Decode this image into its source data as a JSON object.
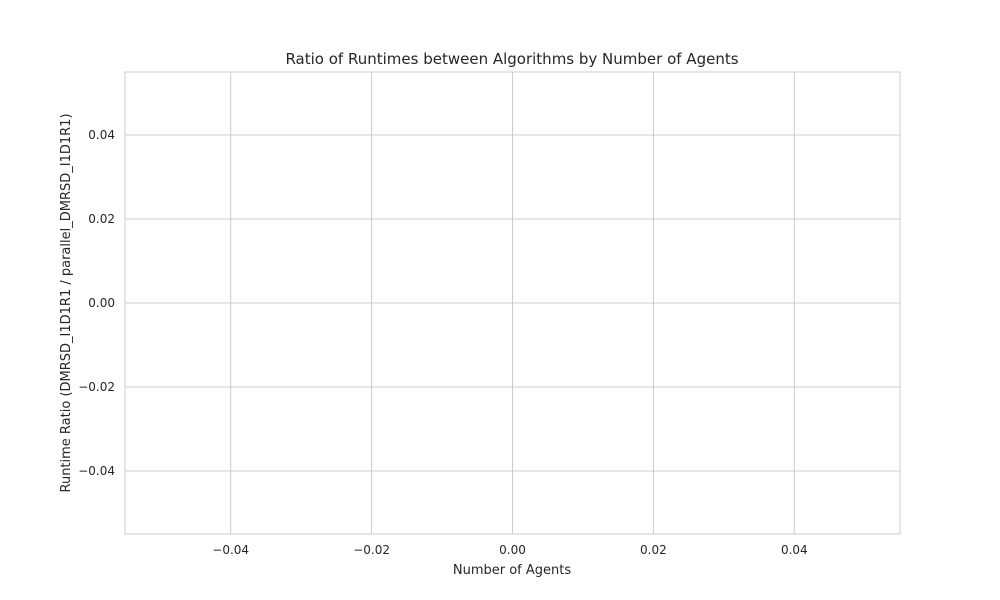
{
  "chart_data": {
    "type": "line",
    "title": "Ratio of Runtimes between Algorithms by Number of Agents",
    "xlabel": "Number of Agents",
    "ylabel": "Runtime Ratio (DMRSD_I1D1R1 / parallel_DMRSD_I1D1R1)",
    "xlim": [
      -0.055,
      0.055
    ],
    "ylim": [
      -0.055,
      0.055
    ],
    "x_ticks": [
      -0.04,
      -0.02,
      0.0,
      0.02,
      0.04
    ],
    "y_ticks": [
      -0.04,
      -0.02,
      0.0,
      0.02,
      0.04
    ],
    "x_tick_labels": [
      "−0.04",
      "−0.02",
      "0.00",
      "0.02",
      "0.04"
    ],
    "y_tick_labels": [
      "−0.04",
      "−0.02",
      "0.00",
      "0.02",
      "0.04"
    ],
    "grid": true,
    "series": [],
    "colors": {
      "grid": "#cccccc",
      "frame": "#cccccc",
      "text": "#262626",
      "background": "#ffffff"
    }
  }
}
